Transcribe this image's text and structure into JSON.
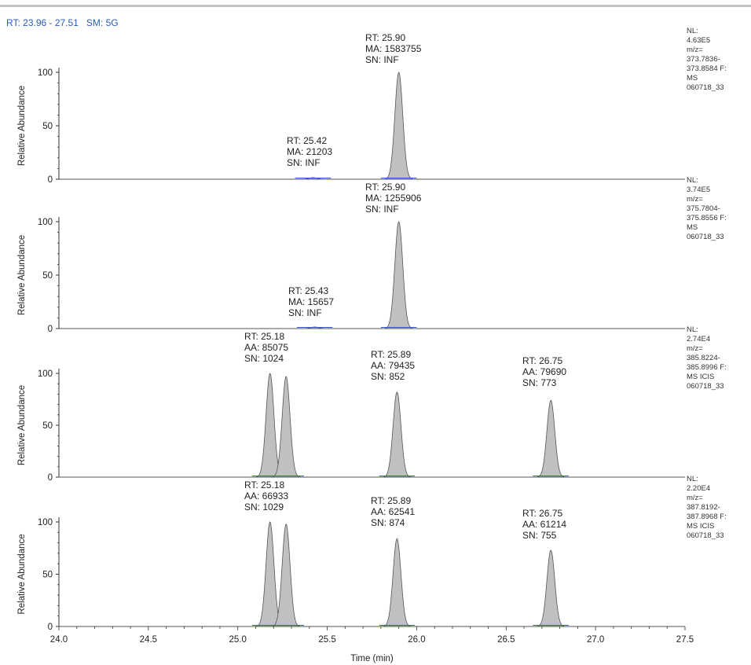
{
  "header": {
    "rt_label": "RT:",
    "rt_range": "23.96 - 27.51",
    "sm_label": "SM:",
    "sm_value": "5G"
  },
  "chart_data": {
    "type": "line",
    "xlabel": "Time (min)",
    "xlim": [
      24.0,
      27.5
    ],
    "x_ticks": [
      "24.0",
      "24.5",
      "25.0",
      "25.5",
      "26.0",
      "26.5",
      "27.0",
      "27.5"
    ],
    "grid": false,
    "fill_color": "#c0c0c0",
    "line_color": "#555555",
    "baseline_color": "#3a5fcd",
    "panels": [
      {
        "ylabel": "Relative Abundance",
        "y_ticks": [
          "0",
          "50",
          "100"
        ],
        "ylim": [
          0,
          100
        ],
        "side_info": [
          "NL:",
          "4.63E5",
          "m/z=",
          "373.7836-",
          "373.8584 F:",
          "MS",
          "060718_33"
        ],
        "annotations": [
          {
            "lines": [
              "RT: 25.90",
              "MA: 1583755",
              "SN: INF"
            ]
          },
          {
            "lines": [
              "RT: 25.42",
              "MA: 21203",
              "SN: INF"
            ]
          }
        ],
        "peaks": [
          {
            "rt": 25.9,
            "height": 100
          },
          {
            "rt": 25.42,
            "height": 1.5
          }
        ]
      },
      {
        "ylabel": "Relative Abundance",
        "y_ticks": [
          "0",
          "50",
          "100"
        ],
        "ylim": [
          0,
          100
        ],
        "side_info": [
          "NL:",
          "3.74E5",
          "m/z=",
          "375.7804-",
          "375.8556 F:",
          "MS",
          "060718_33"
        ],
        "annotations": [
          {
            "lines": [
              "RT: 25.90",
              "MA: 1255906",
              "SN: INF"
            ]
          },
          {
            "lines": [
              "RT: 25.43",
              "MA: 15657",
              "SN: INF"
            ]
          }
        ],
        "peaks": [
          {
            "rt": 25.9,
            "height": 100
          },
          {
            "rt": 25.43,
            "height": 1.5
          }
        ]
      },
      {
        "ylabel": "Relative Abundance",
        "y_ticks": [
          "0",
          "50",
          "100"
        ],
        "ylim": [
          0,
          100
        ],
        "side_info": [
          "NL:",
          "2.74E4",
          "m/z=",
          "385.8224-",
          "385.8996 F:",
          "MS ICIS",
          "060718_33"
        ],
        "annotations": [
          {
            "lines": [
              "RT: 25.18",
              "AA: 85075",
              "SN: 1024"
            ]
          },
          {
            "lines": [
              "RT: 25.89",
              "AA: 79435",
              "SN: 852"
            ]
          },
          {
            "lines": [
              "RT: 26.75",
              "AA: 79690",
              "SN: 773"
            ]
          }
        ],
        "peaks": [
          {
            "rt": 25.18,
            "height": 100
          },
          {
            "rt": 25.27,
            "height": 97
          },
          {
            "rt": 25.89,
            "height": 82
          },
          {
            "rt": 26.75,
            "height": 74
          }
        ]
      },
      {
        "ylabel": "Relative Abundance",
        "y_ticks": [
          "0",
          "50",
          "100"
        ],
        "ylim": [
          0,
          100
        ],
        "side_info": [
          "NL:",
          "2.20E4",
          "m/z=",
          "387.8192-",
          "387.8968 F:",
          "MS ICIS",
          "060718_33"
        ],
        "annotations": [
          {
            "lines": [
              "RT: 25.18",
              "AA: 66933",
              "SN: 1029"
            ]
          },
          {
            "lines": [
              "RT: 25.89",
              "AA: 62541",
              "SN: 874"
            ]
          },
          {
            "lines": [
              "RT: 26.75",
              "AA: 61214",
              "SN: 755"
            ]
          }
        ],
        "peaks": [
          {
            "rt": 25.18,
            "height": 100
          },
          {
            "rt": 25.27,
            "height": 98
          },
          {
            "rt": 25.89,
            "height": 84
          },
          {
            "rt": 26.75,
            "height": 73
          }
        ]
      }
    ]
  }
}
